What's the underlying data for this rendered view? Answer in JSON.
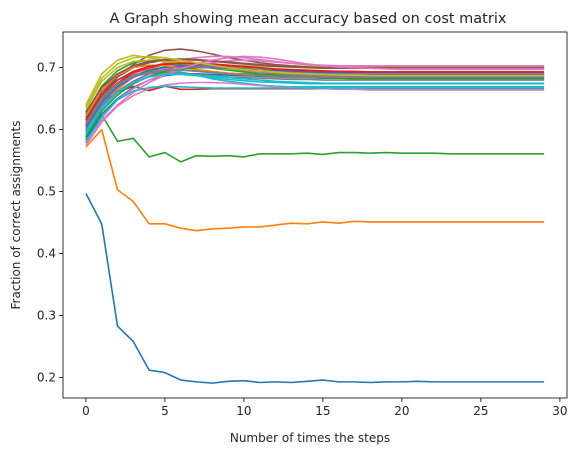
{
  "chart_data": {
    "type": "line",
    "title": "A Graph showing mean accuracy based on cost matrix",
    "xlabel": "Number of times the steps",
    "ylabel": "Fraction of correct assignments",
    "xlim": [
      -1.45,
      30.45
    ],
    "ylim": [
      0.167,
      0.7575
    ],
    "xticks": [
      0,
      5,
      10,
      15,
      20,
      25,
      30
    ],
    "yticks": [
      0.2,
      0.3,
      0.4,
      0.5,
      0.6,
      0.7
    ],
    "grid": false,
    "x": [
      0,
      1,
      2,
      3,
      4,
      5,
      6,
      7,
      8,
      9,
      10,
      11,
      12,
      13,
      14,
      15,
      16,
      17,
      18,
      19,
      20,
      21,
      22,
      23,
      24,
      25,
      26,
      27,
      28,
      29
    ],
    "series": [
      {
        "color": "#1f77b4",
        "values": [
          0.497,
          0.448,
          0.283,
          0.258,
          0.212,
          0.208,
          0.196,
          0.193,
          0.191,
          0.194,
          0.195,
          0.192,
          0.193,
          0.192,
          0.194,
          0.196,
          0.193,
          0.193,
          0.192,
          0.193,
          0.193,
          0.194,
          0.193,
          0.193,
          0.193,
          0.193,
          0.193,
          0.193,
          0.193,
          0.193
        ]
      },
      {
        "color": "#ff7f0e",
        "values": [
          0.572,
          0.6,
          0.503,
          0.484,
          0.448,
          0.448,
          0.441,
          0.437,
          0.44,
          0.441,
          0.443,
          0.443,
          0.446,
          0.449,
          0.448,
          0.451,
          0.449,
          0.452,
          0.451,
          0.451,
          0.451,
          0.451,
          0.451,
          0.451,
          0.451,
          0.451,
          0.451,
          0.451,
          0.451,
          0.451
        ]
      },
      {
        "color": "#2ca02c",
        "values": [
          0.584,
          0.624,
          0.581,
          0.586,
          0.556,
          0.563,
          0.548,
          0.558,
          0.557,
          0.558,
          0.556,
          0.561,
          0.561,
          0.561,
          0.562,
          0.56,
          0.563,
          0.563,
          0.562,
          0.563,
          0.562,
          0.562,
          0.562,
          0.561,
          0.561,
          0.561,
          0.561,
          0.561,
          0.561,
          0.561
        ]
      },
      {
        "color": "#d62728",
        "values": [
          0.61,
          0.645,
          0.66,
          0.67,
          0.663,
          0.67,
          0.665,
          0.665,
          0.666,
          0.666,
          0.666,
          0.666,
          0.666,
          0.666,
          0.666,
          0.666,
          0.666,
          0.666,
          0.666,
          0.666,
          0.666,
          0.666,
          0.666,
          0.666,
          0.666,
          0.666,
          0.666,
          0.666,
          0.666,
          0.666
        ]
      },
      {
        "color": "#9467bd",
        "values": [
          0.62,
          0.66,
          0.68,
          0.69,
          0.7,
          0.705,
          0.705,
          0.703,
          0.7,
          0.697,
          0.695,
          0.693,
          0.69,
          0.688,
          0.687,
          0.686,
          0.686,
          0.685,
          0.685,
          0.685,
          0.684,
          0.684,
          0.684,
          0.684,
          0.684,
          0.684,
          0.684,
          0.684,
          0.684,
          0.684
        ]
      },
      {
        "color": "#8c564b",
        "values": [
          0.605,
          0.65,
          0.685,
          0.705,
          0.72,
          0.728,
          0.73,
          0.727,
          0.722,
          0.716,
          0.712,
          0.708,
          0.705,
          0.703,
          0.702,
          0.701,
          0.701,
          0.7,
          0.7,
          0.7,
          0.7,
          0.7,
          0.7,
          0.7,
          0.7,
          0.7,
          0.7,
          0.7,
          0.7,
          0.7
        ]
      },
      {
        "color": "#e377c2",
        "values": [
          0.595,
          0.64,
          0.672,
          0.69,
          0.7,
          0.708,
          0.713,
          0.716,
          0.718,
          0.718,
          0.716,
          0.713,
          0.71,
          0.707,
          0.705,
          0.703,
          0.702,
          0.7,
          0.699,
          0.698,
          0.697,
          0.697,
          0.697,
          0.697,
          0.697,
          0.697,
          0.697,
          0.697,
          0.697,
          0.697
        ]
      },
      {
        "color": "#7f7f7f",
        "values": [
          0.615,
          0.655,
          0.675,
          0.688,
          0.693,
          0.696,
          0.696,
          0.695,
          0.693,
          0.691,
          0.69,
          0.689,
          0.688,
          0.688,
          0.688,
          0.688,
          0.688,
          0.688,
          0.688,
          0.688,
          0.688,
          0.688,
          0.688,
          0.688,
          0.688,
          0.688,
          0.688,
          0.688,
          0.688,
          0.688
        ]
      },
      {
        "color": "#bcbd22",
        "values": [
          0.64,
          0.69,
          0.712,
          0.72,
          0.716,
          0.712,
          0.709,
          0.707,
          0.705,
          0.704,
          0.703,
          0.702,
          0.702,
          0.702,
          0.702,
          0.702,
          0.702,
          0.702,
          0.702,
          0.702,
          0.702,
          0.702,
          0.702,
          0.702,
          0.702,
          0.702,
          0.702,
          0.702,
          0.702,
          0.702
        ]
      },
      {
        "color": "#17becf",
        "values": [
          0.6,
          0.64,
          0.66,
          0.678,
          0.69,
          0.695,
          0.693,
          0.688,
          0.682,
          0.678,
          0.675,
          0.672,
          0.67,
          0.669,
          0.669,
          0.669,
          0.669,
          0.669,
          0.669,
          0.669,
          0.669,
          0.669,
          0.669,
          0.669,
          0.669,
          0.669,
          0.669,
          0.669,
          0.669,
          0.669
        ]
      },
      {
        "color": "#1f77b4",
        "values": [
          0.585,
          0.625,
          0.65,
          0.668,
          0.68,
          0.687,
          0.69,
          0.69,
          0.689,
          0.688,
          0.687,
          0.686,
          0.685,
          0.684,
          0.684,
          0.683,
          0.683,
          0.683,
          0.683,
          0.683,
          0.683,
          0.683,
          0.683,
          0.683,
          0.683,
          0.683,
          0.683,
          0.683,
          0.683,
          0.683
        ]
      },
      {
        "color": "#ff7f0e",
        "values": [
          0.59,
          0.635,
          0.665,
          0.685,
          0.698,
          0.705,
          0.707,
          0.706,
          0.704,
          0.701,
          0.698,
          0.695,
          0.693,
          0.691,
          0.69,
          0.689,
          0.689,
          0.688,
          0.688,
          0.688,
          0.688,
          0.688,
          0.688,
          0.688,
          0.688,
          0.688,
          0.688,
          0.688,
          0.688,
          0.688
        ]
      },
      {
        "color": "#2ca02c",
        "values": [
          0.625,
          0.67,
          0.695,
          0.708,
          0.712,
          0.71,
          0.707,
          0.703,
          0.699,
          0.696,
          0.693,
          0.69,
          0.688,
          0.686,
          0.685,
          0.684,
          0.683,
          0.682,
          0.682,
          0.681,
          0.681,
          0.681,
          0.681,
          0.681,
          0.681,
          0.681,
          0.681,
          0.681,
          0.681,
          0.681
        ]
      },
      {
        "color": "#d62728",
        "values": [
          0.608,
          0.65,
          0.675,
          0.692,
          0.7,
          0.705,
          0.707,
          0.707,
          0.706,
          0.704,
          0.702,
          0.7,
          0.698,
          0.697,
          0.696,
          0.695,
          0.694,
          0.694,
          0.693,
          0.693,
          0.693,
          0.693,
          0.693,
          0.693,
          0.693,
          0.693,
          0.693,
          0.693,
          0.693,
          0.693
        ]
      },
      {
        "color": "#9467bd",
        "values": [
          0.598,
          0.642,
          0.668,
          0.684,
          0.694,
          0.7,
          0.702,
          0.702,
          0.7,
          0.698,
          0.696,
          0.694,
          0.692,
          0.691,
          0.69,
          0.689,
          0.689,
          0.688,
          0.688,
          0.688,
          0.688,
          0.688,
          0.688,
          0.688,
          0.688,
          0.688,
          0.688,
          0.688,
          0.688,
          0.688
        ]
      },
      {
        "color": "#8c564b",
        "values": [
          0.618,
          0.66,
          0.685,
          0.7,
          0.708,
          0.712,
          0.713,
          0.712,
          0.71,
          0.708,
          0.706,
          0.704,
          0.702,
          0.701,
          0.7,
          0.699,
          0.699,
          0.699,
          0.699,
          0.699,
          0.699,
          0.699,
          0.699,
          0.699,
          0.699,
          0.699,
          0.699,
          0.699,
          0.699,
          0.699
        ]
      },
      {
        "color": "#e377c2",
        "values": [
          0.578,
          0.62,
          0.648,
          0.666,
          0.68,
          0.69,
          0.698,
          0.704,
          0.708,
          0.711,
          0.712,
          0.711,
          0.709,
          0.707,
          0.705,
          0.704,
          0.703,
          0.703,
          0.703,
          0.703,
          0.703,
          0.703,
          0.703,
          0.703,
          0.703,
          0.703,
          0.703,
          0.703,
          0.703,
          0.703
        ]
      },
      {
        "color": "#7f7f7f",
        "values": [
          0.612,
          0.652,
          0.674,
          0.686,
          0.691,
          0.692,
          0.691,
          0.689,
          0.687,
          0.685,
          0.684,
          0.683,
          0.682,
          0.681,
          0.681,
          0.68,
          0.68,
          0.68,
          0.68,
          0.68,
          0.68,
          0.68,
          0.68,
          0.68,
          0.68,
          0.68,
          0.68,
          0.68,
          0.68,
          0.68
        ]
      },
      {
        "color": "#bcbd22",
        "values": [
          0.632,
          0.678,
          0.7,
          0.71,
          0.712,
          0.71,
          0.707,
          0.704,
          0.701,
          0.698,
          0.696,
          0.694,
          0.692,
          0.691,
          0.69,
          0.689,
          0.689,
          0.688,
          0.688,
          0.688,
          0.688,
          0.688,
          0.688,
          0.688,
          0.688,
          0.688,
          0.688,
          0.688,
          0.688,
          0.688
        ]
      },
      {
        "color": "#17becf",
        "values": [
          0.592,
          0.634,
          0.66,
          0.676,
          0.686,
          0.69,
          0.69,
          0.688,
          0.686,
          0.684,
          0.682,
          0.68,
          0.678,
          0.677,
          0.676,
          0.675,
          0.675,
          0.675,
          0.675,
          0.675,
          0.675,
          0.675,
          0.675,
          0.675,
          0.675,
          0.675,
          0.675,
          0.675,
          0.675,
          0.675
        ]
      },
      {
        "color": "#1f77b4",
        "values": [
          0.603,
          0.645,
          0.67,
          0.686,
          0.696,
          0.701,
          0.703,
          0.703,
          0.702,
          0.7,
          0.698,
          0.696,
          0.695,
          0.694,
          0.693,
          0.692,
          0.692,
          0.692,
          0.692,
          0.692,
          0.692,
          0.692,
          0.692,
          0.692,
          0.692,
          0.692,
          0.692,
          0.692,
          0.692,
          0.692
        ]
      },
      {
        "color": "#ff7f0e",
        "values": [
          0.622,
          0.664,
          0.688,
          0.7,
          0.704,
          0.703,
          0.7,
          0.697,
          0.694,
          0.691,
          0.689,
          0.687,
          0.686,
          0.685,
          0.685,
          0.685,
          0.685,
          0.685,
          0.685,
          0.685,
          0.685,
          0.685,
          0.685,
          0.685,
          0.685,
          0.685,
          0.685,
          0.685,
          0.685,
          0.685
        ]
      },
      {
        "color": "#2ca02c",
        "values": [
          0.588,
          0.63,
          0.656,
          0.674,
          0.686,
          0.694,
          0.698,
          0.7,
          0.7,
          0.699,
          0.697,
          0.695,
          0.693,
          0.692,
          0.691,
          0.69,
          0.69,
          0.689,
          0.689,
          0.689,
          0.689,
          0.689,
          0.689,
          0.689,
          0.689,
          0.689,
          0.689,
          0.689,
          0.689,
          0.689
        ]
      },
      {
        "color": "#d62728",
        "values": [
          0.615,
          0.656,
          0.68,
          0.694,
          0.702,
          0.706,
          0.707,
          0.706,
          0.705,
          0.703,
          0.701,
          0.699,
          0.697,
          0.696,
          0.695,
          0.694,
          0.694,
          0.693,
          0.693,
          0.693,
          0.693,
          0.693,
          0.693,
          0.693,
          0.693,
          0.693,
          0.693,
          0.693,
          0.693,
          0.693
        ]
      },
      {
        "color": "#9467bd",
        "values": [
          0.6,
          0.638,
          0.662,
          0.678,
          0.69,
          0.697,
          0.701,
          0.702,
          0.701,
          0.699,
          0.697,
          0.695,
          0.693,
          0.692,
          0.691,
          0.69,
          0.69,
          0.69,
          0.69,
          0.69,
          0.69,
          0.69,
          0.69,
          0.69,
          0.69,
          0.69,
          0.69,
          0.69,
          0.69,
          0.69
        ]
      },
      {
        "color": "#8c564b",
        "values": [
          0.628,
          0.668,
          0.69,
          0.703,
          0.71,
          0.713,
          0.714,
          0.713,
          0.711,
          0.709,
          0.707,
          0.705,
          0.703,
          0.702,
          0.701,
          0.7,
          0.7,
          0.7,
          0.7,
          0.7,
          0.7,
          0.7,
          0.7,
          0.7,
          0.7,
          0.7,
          0.7,
          0.7,
          0.7,
          0.7
        ]
      },
      {
        "color": "#e377c2",
        "values": [
          0.582,
          0.615,
          0.64,
          0.66,
          0.676,
          0.688,
          0.698,
          0.706,
          0.712,
          0.716,
          0.718,
          0.717,
          0.714,
          0.71,
          0.706,
          0.703,
          0.701,
          0.7,
          0.699,
          0.698,
          0.698,
          0.698,
          0.698,
          0.698,
          0.698,
          0.698,
          0.698,
          0.698,
          0.698,
          0.698
        ]
      },
      {
        "color": "#7f7f7f",
        "values": [
          0.607,
          0.648,
          0.672,
          0.686,
          0.693,
          0.696,
          0.696,
          0.694,
          0.692,
          0.69,
          0.688,
          0.687,
          0.686,
          0.685,
          0.685,
          0.685,
          0.685,
          0.685,
          0.685,
          0.685,
          0.685,
          0.685,
          0.685,
          0.685,
          0.685,
          0.685,
          0.685,
          0.685,
          0.685,
          0.685
        ]
      },
      {
        "color": "#bcbd22",
        "values": [
          0.636,
          0.683,
          0.706,
          0.716,
          0.718,
          0.716,
          0.712,
          0.708,
          0.704,
          0.7,
          0.697,
          0.695,
          0.693,
          0.691,
          0.69,
          0.689,
          0.688,
          0.688,
          0.687,
          0.687,
          0.687,
          0.687,
          0.687,
          0.687,
          0.687,
          0.687,
          0.687,
          0.687,
          0.687,
          0.687
        ]
      },
      {
        "color": "#17becf",
        "values": [
          0.596,
          0.636,
          0.661,
          0.676,
          0.685,
          0.689,
          0.689,
          0.687,
          0.684,
          0.681,
          0.679,
          0.677,
          0.676,
          0.675,
          0.674,
          0.674,
          0.674,
          0.674,
          0.674,
          0.674,
          0.674,
          0.674,
          0.674,
          0.674,
          0.674,
          0.674,
          0.674,
          0.674,
          0.674,
          0.674
        ]
      },
      {
        "color": "#e377c2",
        "values": [
          0.575,
          0.612,
          0.638,
          0.655,
          0.666,
          0.672,
          0.675,
          0.676,
          0.676,
          0.675,
          0.673,
          0.671,
          0.669,
          0.668,
          0.667,
          0.666,
          0.665,
          0.665,
          0.664,
          0.664,
          0.664,
          0.664,
          0.664,
          0.664,
          0.664,
          0.664,
          0.664,
          0.664,
          0.664,
          0.664
        ]
      },
      {
        "color": "#17becf",
        "values": [
          0.58,
          0.62,
          0.648,
          0.662,
          0.668,
          0.67,
          0.669,
          0.668,
          0.667,
          0.667,
          0.667,
          0.667,
          0.667,
          0.667,
          0.667,
          0.667,
          0.667,
          0.667,
          0.667,
          0.667,
          0.667,
          0.667,
          0.667,
          0.667,
          0.667,
          0.667,
          0.667,
          0.667,
          0.667,
          0.667
        ]
      }
    ]
  }
}
